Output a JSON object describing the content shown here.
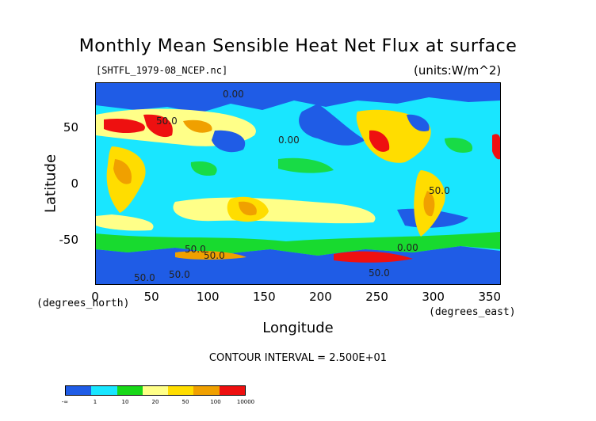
{
  "title": "Monthly Mean Sensible Heat Net Flux at surface",
  "file_label": "[SHTFL_1979-08_NCEP.nc]",
  "units_label": "(units:W/m^2)",
  "x_axis": {
    "label": "Longitude",
    "coord_label": "(degrees_east)",
    "ticks": [
      "0",
      "50",
      "100",
      "150",
      "200",
      "250",
      "300",
      "350"
    ],
    "range": [
      0,
      360
    ]
  },
  "y_axis": {
    "label": "Latitude",
    "coord_label": "(degrees_north)",
    "ticks": [
      "50",
      "0",
      "-50"
    ],
    "range": [
      -90,
      90
    ]
  },
  "contour_interval": "CONTOUR INTERVAL = 2.500E+01",
  "contour_labels": [
    "0.00",
    "50.0",
    "0.00",
    "50.0",
    "50.0",
    "50.0",
    "0.00",
    "50.0",
    "50.0",
    "50.0"
  ],
  "colorbar": {
    "colors": [
      "#1f5ce6",
      "#19e6ff",
      "#18d818",
      "#ffff88",
      "#ffdd00",
      "#f0a000",
      "#ee1010"
    ],
    "labels": [
      "-∞",
      "1",
      "10",
      "20",
      "50",
      "100",
      "10000"
    ]
  },
  "legend_colors": {
    "ocean_low": "#1f5ce6",
    "ocean": "#19e6ff",
    "green": "#18d818",
    "light_yellow": "#ffff88",
    "yellow": "#ffdd00",
    "orange": "#f0a000",
    "red": "#ee1010"
  }
}
